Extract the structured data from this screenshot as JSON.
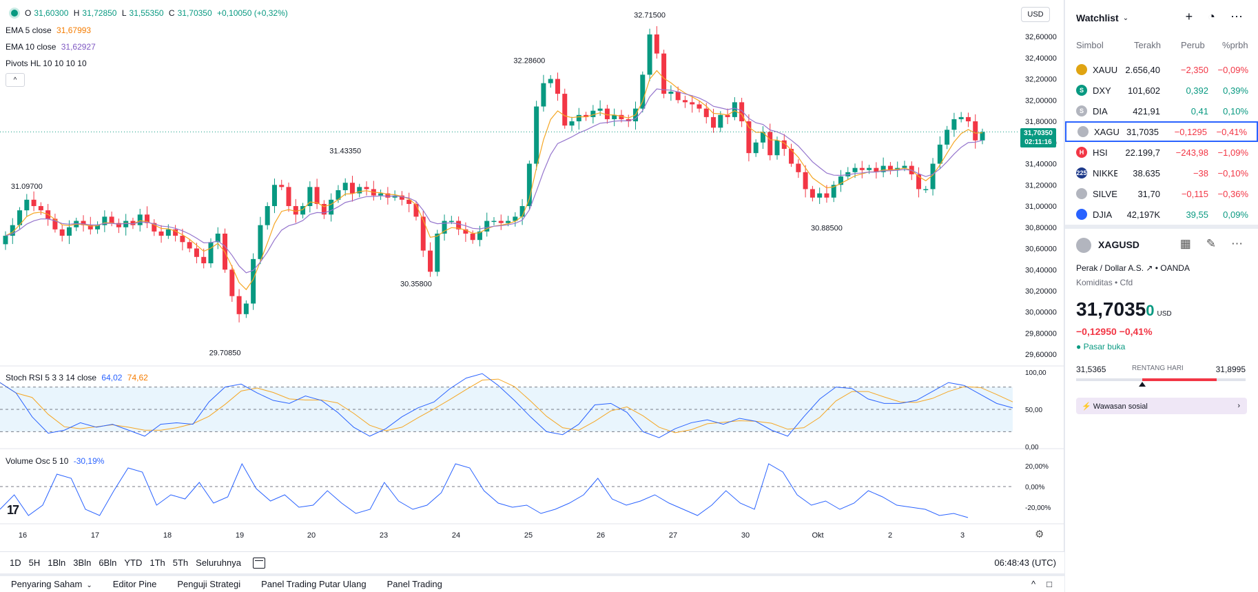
{
  "ohlc_header": {
    "o_label": "O",
    "o": "31,60300",
    "h_label": "H",
    "h": "31,72850",
    "l_label": "L",
    "l": "31,55350",
    "c_label": "C",
    "c": "31,70350",
    "change": "+0,10050 (+0,32%)"
  },
  "indicators": {
    "ema5_label": "EMA 5 close",
    "ema5_value": "31,67993",
    "ema10_label": "EMA 10 close",
    "ema10_value": "31,62927",
    "pivots_label": "Pivots HL 10 10 10 10",
    "stoch_label": "Stoch RSI 5 3 3 14 close",
    "stoch_k": "64,02",
    "stoch_d": "74,62",
    "volosc_label": "Volume Osc 5 10",
    "volosc_value": "-30,19%"
  },
  "currency": "USD",
  "collapse_glyph": "^",
  "last_price_tag": {
    "price": "31,70350",
    "countdown": "02:11:16"
  },
  "tv_logo": "17",
  "gear_glyph": "⚙",
  "chart_data": {
    "type": "candlestick",
    "price_axis_ticks": [
      "32,60000",
      "32,40000",
      "32,20000",
      "32,00000",
      "31,80000",
      "31,60000",
      "31,40000",
      "31,20000",
      "31,00000",
      "30,80000",
      "30,60000",
      "30,40000",
      "30,20000",
      "30,00000",
      "29,80000",
      "29,60000"
    ],
    "price_axis_values": [
      32.6,
      32.4,
      32.2,
      32.0,
      31.8,
      31.6,
      31.4,
      31.2,
      31.0,
      30.8,
      30.6,
      30.4,
      30.2,
      30.0,
      29.8,
      29.6
    ],
    "ylim": [
      29.53,
      32.75
    ],
    "time_axis_labels": [
      "16",
      "17",
      "18",
      "19",
      "20",
      "23",
      "24",
      "25",
      "26",
      "27",
      "30",
      "Okt",
      "2",
      "3"
    ],
    "pivot_labels": [
      {
        "text": "31.09700",
        "value": 31.097,
        "bar": 3,
        "pos": "above"
      },
      {
        "text": "29.70850",
        "value": 29.7085,
        "bar": 31,
        "pos": "below"
      },
      {
        "text": "31.43350",
        "value": 31.4335,
        "bar": 48,
        "pos": "above"
      },
      {
        "text": "30.35800",
        "value": 30.358,
        "bar": 58,
        "pos": "below"
      },
      {
        "text": "32.28600",
        "value": 32.286,
        "bar": 74,
        "pos": "above"
      },
      {
        "text": "32.71500",
        "value": 32.715,
        "bar": 91,
        "pos": "above"
      },
      {
        "text": "30.88500",
        "value": 30.885,
        "bar": 116,
        "pos": "below"
      }
    ],
    "closes": [
      30.72,
      30.82,
      30.96,
      31.06,
      31.0,
      30.96,
      30.88,
      30.78,
      30.72,
      30.8,
      30.86,
      30.82,
      30.78,
      30.82,
      30.9,
      30.84,
      30.8,
      30.86,
      30.82,
      30.92,
      30.84,
      30.76,
      30.72,
      30.78,
      30.72,
      30.66,
      30.6,
      30.52,
      30.46,
      30.66,
      30.74,
      30.4,
      30.15,
      29.98,
      30.08,
      30.5,
      30.82,
      31.0,
      31.2,
      31.18,
      31.0,
      30.92,
      31.0,
      31.18,
      31.02,
      30.92,
      31.06,
      31.15,
      31.22,
      31.12,
      31.18,
      31.16,
      31.1,
      31.12,
      31.08,
      31.1,
      31.06,
      31.02,
      30.9,
      30.58,
      30.38,
      30.74,
      30.86,
      30.86,
      30.78,
      30.74,
      30.68,
      30.76,
      30.86,
      30.86,
      30.84,
      30.86,
      30.9,
      31.0,
      31.4,
      31.94,
      32.16,
      32.2,
      32.06,
      31.76,
      31.8,
      31.86,
      31.84,
      31.9,
      31.92,
      31.82,
      31.86,
      31.82,
      31.8,
      31.92,
      32.24,
      32.62,
      32.44,
      32.06,
      32.08,
      32.0,
      31.98,
      31.96,
      31.92,
      31.84,
      31.74,
      31.86,
      31.84,
      31.98,
      31.8,
      31.5,
      31.6,
      31.7,
      31.48,
      31.62,
      31.54,
      31.4,
      31.32,
      31.16,
      31.08,
      31.12,
      31.08,
      31.2,
      31.28,
      31.32,
      31.36,
      31.34,
      31.36,
      31.32,
      31.38,
      31.34,
      31.36,
      31.38,
      31.3,
      31.16,
      31.16,
      31.4,
      31.58,
      31.72,
      31.82,
      31.84,
      31.8,
      31.62,
      31.7
    ],
    "ema_fast_label": "EMA 5",
    "ema_slow_label": "EMA 10",
    "stoch_ticks": [
      "100,00",
      "50,00",
      "0,00"
    ],
    "stoch_values": [
      100,
      50,
      0
    ],
    "stoch_bands": [
      80,
      50,
      20
    ],
    "volosc_ticks": [
      "20,00%",
      "0,00%",
      "-20,00%"
    ],
    "volosc_values": [
      20,
      0,
      -20
    ]
  },
  "toolbar": {
    "ranges": [
      "1D",
      "5H",
      "1Bln",
      "3Bln",
      "6Bln",
      "YTD",
      "1Th",
      "5Th",
      "Seluruhnya"
    ],
    "clock": "06:48:43 (UTC)"
  },
  "bottom_tabs": [
    "Penyaring Saham",
    "Editor Pine",
    "Penguji Strategi",
    "Panel Trading Putar Ulang",
    "Panel Trading"
  ],
  "bottom_tabs_right": [
    "^",
    "□"
  ],
  "watchlist": {
    "title": "Watchlist",
    "header_icons": [
      "+",
      "◔",
      "⋯"
    ],
    "columns": [
      "Simbol",
      "Terakh",
      "Perub",
      "%prbh"
    ],
    "rows": [
      {
        "sym": "XAUU",
        "last": "2.656,40",
        "chg": "−2,350",
        "pct": "−0,09%",
        "icon_color": "#e0a412",
        "icon": "",
        "neg": true
      },
      {
        "sym": "DXY",
        "last": "101,602",
        "chg": "0,392",
        "pct": "0,39%",
        "icon_color": "#089981",
        "icon": "S",
        "neg": false
      },
      {
        "sym": "DIA",
        "last": "421,91",
        "chg": "0,41",
        "pct": "0,10%",
        "icon_color": "#b2b5be",
        "icon": "S",
        "neg": false
      },
      {
        "sym": "XAGU",
        "last": "31,7035",
        "chg": "−0,1295",
        "pct": "−0,41%",
        "icon_color": "#b2b5be",
        "icon": "",
        "neg": true
      },
      {
        "sym": "HSI",
        "last": "22.199,7",
        "chg": "−243,98",
        "pct": "−1,09%",
        "icon_color": "#f23645",
        "icon": "H",
        "neg": true
      },
      {
        "sym": "NIKKE",
        "last": "38.635",
        "chg": "−38",
        "pct": "−0,10%",
        "icon_color": "#1e3a8a",
        "icon": "225",
        "neg": true
      },
      {
        "sym": "SILVEF",
        "last": "31,70",
        "chg": "−0,115",
        "pct": "−0,36%",
        "icon_color": "#b2b5be",
        "icon": "",
        "neg": true
      },
      {
        "sym": "DJIA",
        "last": "42,197K",
        "chg": "39,55",
        "pct": "0,09%",
        "icon_color": "#2962ff",
        "icon": "",
        "neg": false
      }
    ],
    "selected_index": 3
  },
  "detail": {
    "symbol": "XAGUSD",
    "icons": [
      "▦",
      "✎",
      "⋯"
    ],
    "description": "Perak / Dollar A.S. ↗ • OANDA",
    "category": "Komiditas • Cfd",
    "price_main": "31,7035",
    "price_frac": "0",
    "unit": "USD",
    "change": "−0,12950  −0,41%",
    "status": "● Pasar buka",
    "range_low": "31,5365",
    "range_label": "RENTANG HARI",
    "range_high": "31,8995",
    "range_position": 0.39,
    "social": "⚡  Wawasan sosial",
    "social_arrow": "›"
  },
  "colors": {
    "up": "#089981",
    "down": "#f23645",
    "ema_fast": "#f5a623",
    "ema_slow": "#9575cd",
    "stoch_k": "#2962ff",
    "stoch_d": "#f5a623",
    "volosc": "#2962ff"
  }
}
